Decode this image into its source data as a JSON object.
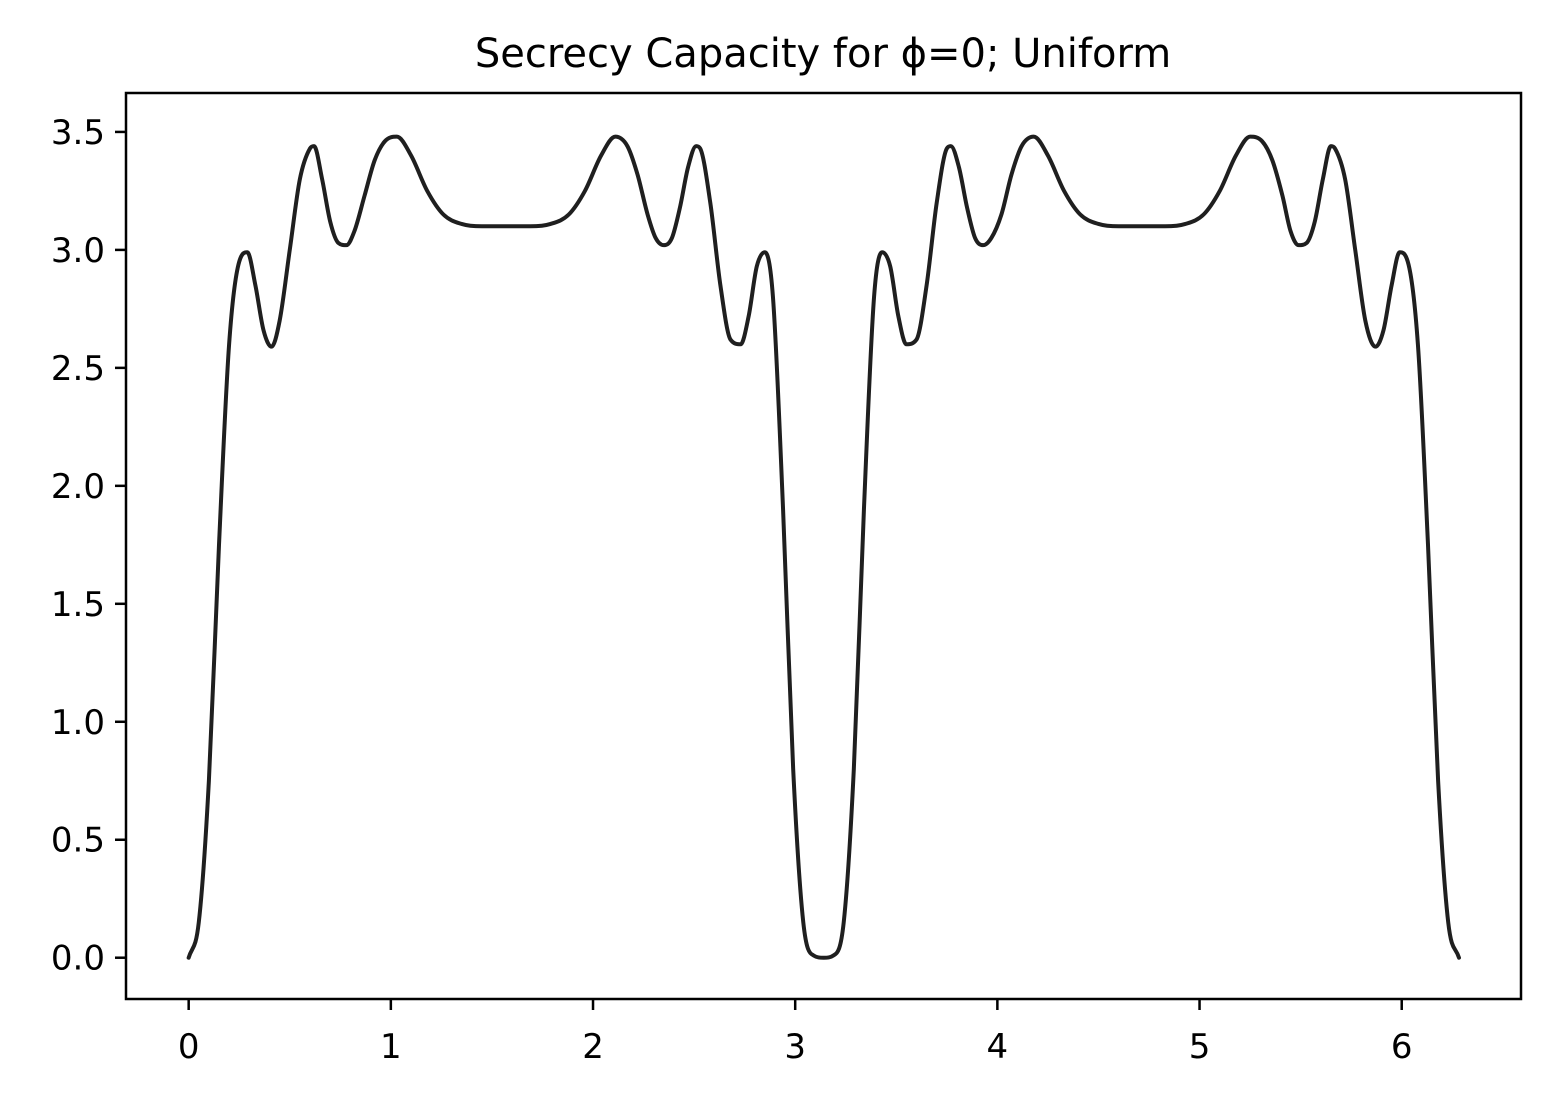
{
  "chart_data": {
    "type": "line",
    "title": "Secrecy Capacity for ϕ=0; Uniform",
    "xlabel": "",
    "ylabel": "",
    "xlim": [
      -0.31,
      6.59
    ],
    "ylim": [
      -0.175,
      3.665
    ],
    "x_ticks": [
      "0",
      "1",
      "2",
      "3",
      "4",
      "5",
      "6"
    ],
    "y_ticks": [
      "0.0",
      "0.5",
      "1.0",
      "1.5",
      "2.0",
      "2.5",
      "3.0",
      "3.5"
    ],
    "grid": false,
    "legend": "none",
    "line_color": "#1f1f1f",
    "series": [
      {
        "x": [
          0.0,
          0.05,
          0.1,
          0.15,
          0.2,
          0.25,
          0.29,
          0.33,
          0.37,
          0.41,
          0.45,
          0.5,
          0.55,
          0.6,
          0.62,
          0.66,
          0.7,
          0.74,
          0.78,
          0.82,
          0.87,
          0.92,
          0.97,
          1.03,
          1.1,
          1.18,
          1.26,
          1.35,
          1.45,
          1.57,
          1.69,
          1.79,
          1.88,
          1.96,
          2.04,
          2.11,
          2.17,
          2.22,
          2.27,
          2.31,
          2.35,
          2.39,
          2.43,
          2.47,
          2.51,
          2.53,
          2.58,
          2.63,
          2.68,
          2.73,
          2.77,
          2.81,
          2.85,
          2.89,
          2.94,
          2.99,
          3.04,
          3.09,
          3.1416,
          3.19,
          3.24,
          3.29,
          3.34,
          3.39,
          3.43,
          3.47,
          3.51,
          3.55,
          3.6,
          3.65,
          3.7,
          3.75,
          3.77,
          3.81,
          3.85,
          3.89,
          3.93,
          3.97,
          4.02,
          4.07,
          4.12,
          4.18,
          4.25,
          4.33,
          4.41,
          4.5,
          4.6,
          4.71,
          4.83,
          4.93,
          5.02,
          5.1,
          5.18,
          5.25,
          5.31,
          5.36,
          5.41,
          5.45,
          5.49,
          5.53,
          5.57,
          5.61,
          5.65,
          5.67,
          5.72,
          5.77,
          5.82,
          5.87,
          5.91,
          5.95,
          5.99,
          6.03,
          6.08,
          6.13,
          6.18,
          6.23,
          6.2832
        ],
        "y": [
          0.0,
          0.15,
          0.75,
          1.75,
          2.6,
          2.95,
          2.99,
          2.85,
          2.66,
          2.59,
          2.7,
          3.0,
          3.3,
          3.43,
          3.44,
          3.3,
          3.12,
          3.03,
          3.02,
          3.08,
          3.23,
          3.38,
          3.46,
          3.48,
          3.4,
          3.25,
          3.15,
          3.11,
          3.1,
          3.1,
          3.1,
          3.11,
          3.15,
          3.25,
          3.4,
          3.48,
          3.44,
          3.32,
          3.15,
          3.05,
          3.02,
          3.05,
          3.18,
          3.35,
          3.44,
          3.43,
          3.2,
          2.85,
          2.62,
          2.6,
          2.72,
          2.93,
          2.99,
          2.8,
          1.9,
          0.8,
          0.15,
          0.01,
          0.0,
          0.01,
          0.15,
          0.8,
          1.9,
          2.8,
          2.99,
          2.93,
          2.72,
          2.6,
          2.62,
          2.85,
          3.2,
          3.43,
          3.44,
          3.35,
          3.18,
          3.05,
          3.02,
          3.05,
          3.15,
          3.32,
          3.44,
          3.48,
          3.4,
          3.25,
          3.15,
          3.11,
          3.1,
          3.1,
          3.1,
          3.11,
          3.15,
          3.25,
          3.4,
          3.48,
          3.46,
          3.38,
          3.23,
          3.08,
          3.02,
          3.03,
          3.12,
          3.3,
          3.44,
          3.43,
          3.3,
          3.0,
          2.7,
          2.59,
          2.66,
          2.85,
          2.99,
          2.95,
          2.6,
          1.75,
          0.75,
          0.15,
          0.0
        ]
      }
    ]
  }
}
